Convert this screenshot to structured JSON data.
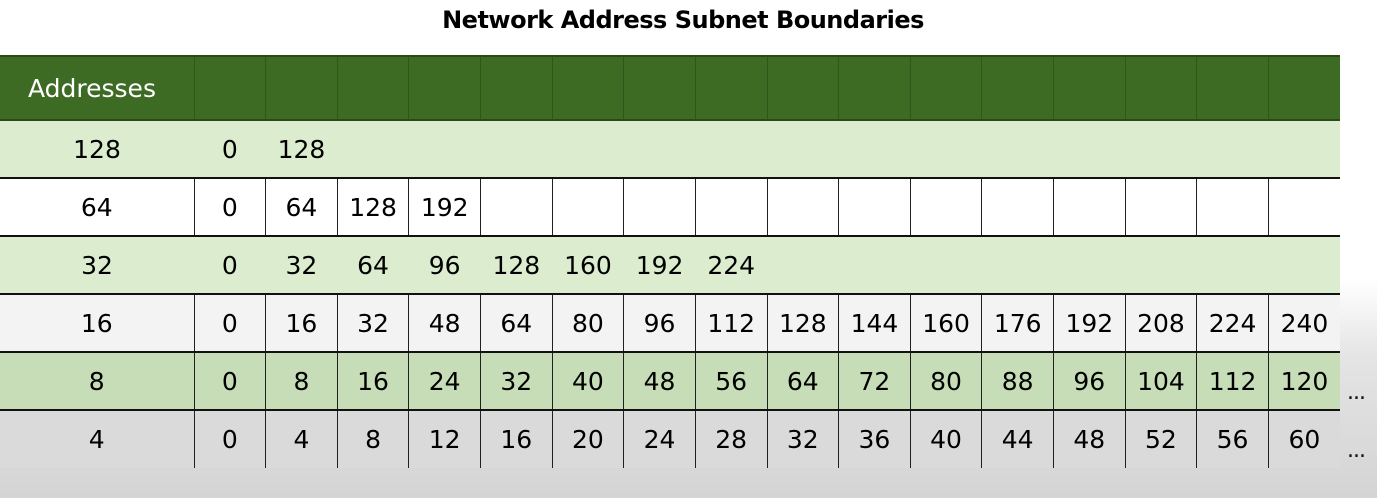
{
  "title": "Network Address Subnet Boundaries",
  "header": {
    "label": "Addresses",
    "empty_cols": 16
  },
  "rows": [
    {
      "size": "128",
      "values": [
        "0",
        "128",
        "",
        "",
        "",
        "",
        "",
        "",
        "",
        "",
        "",
        "",
        "",
        "",
        "",
        ""
      ],
      "continues": false
    },
    {
      "size": "64",
      "values": [
        "0",
        "64",
        "128",
        "192",
        "",
        "",
        "",
        "",
        "",
        "",
        "",
        "",
        "",
        "",
        "",
        ""
      ],
      "continues": false
    },
    {
      "size": "32",
      "values": [
        "0",
        "32",
        "64",
        "96",
        "128",
        "160",
        "192",
        "224",
        "",
        "",
        "",
        "",
        "",
        "",
        "",
        ""
      ],
      "continues": false
    },
    {
      "size": "16",
      "values": [
        "0",
        "16",
        "32",
        "48",
        "64",
        "80",
        "96",
        "112",
        "128",
        "144",
        "160",
        "176",
        "192",
        "208",
        "224",
        "240"
      ],
      "continues": false
    },
    {
      "size": "8",
      "values": [
        "0",
        "8",
        "16",
        "24",
        "32",
        "40",
        "48",
        "56",
        "64",
        "72",
        "80",
        "88",
        "96",
        "104",
        "112",
        "120"
      ],
      "continues": true
    },
    {
      "size": "4",
      "values": [
        "0",
        "4",
        "8",
        "12",
        "16",
        "20",
        "24",
        "28",
        "32",
        "36",
        "40",
        "44",
        "48",
        "52",
        "56",
        "60"
      ],
      "continues": true
    }
  ],
  "ellipsis": "...",
  "colors": {
    "header_bg": "#3e6b24",
    "header_text": "#ffffff",
    "light_green": "#dceccf",
    "mid_green": "#c6ddb7",
    "gray": "#dadada"
  }
}
